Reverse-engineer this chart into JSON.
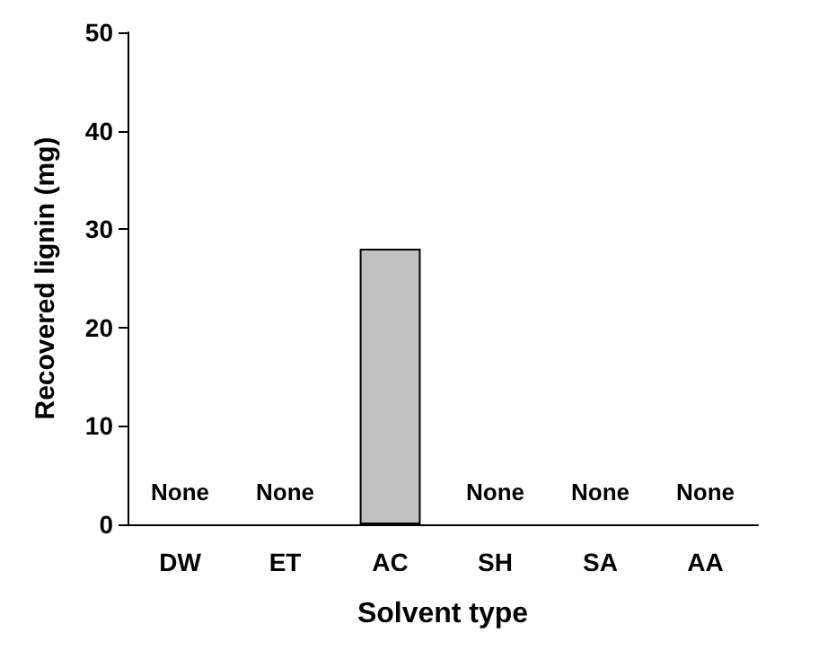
{
  "chart_data": {
    "type": "bar",
    "xlabel": "Solvent type",
    "ylabel": "Recovered lignin (mg)",
    "categories": [
      "DW",
      "ET",
      "AC",
      "SH",
      "SA",
      "AA"
    ],
    "values": [
      null,
      null,
      28,
      null,
      null,
      null
    ],
    "value_labels": [
      "None",
      "None",
      null,
      "None",
      "None",
      "None"
    ],
    "color": "#c0c0c0",
    "ylim": [
      0,
      50
    ],
    "yticks": [
      0,
      10,
      20,
      30,
      40,
      50
    ],
    "grid": false
  }
}
